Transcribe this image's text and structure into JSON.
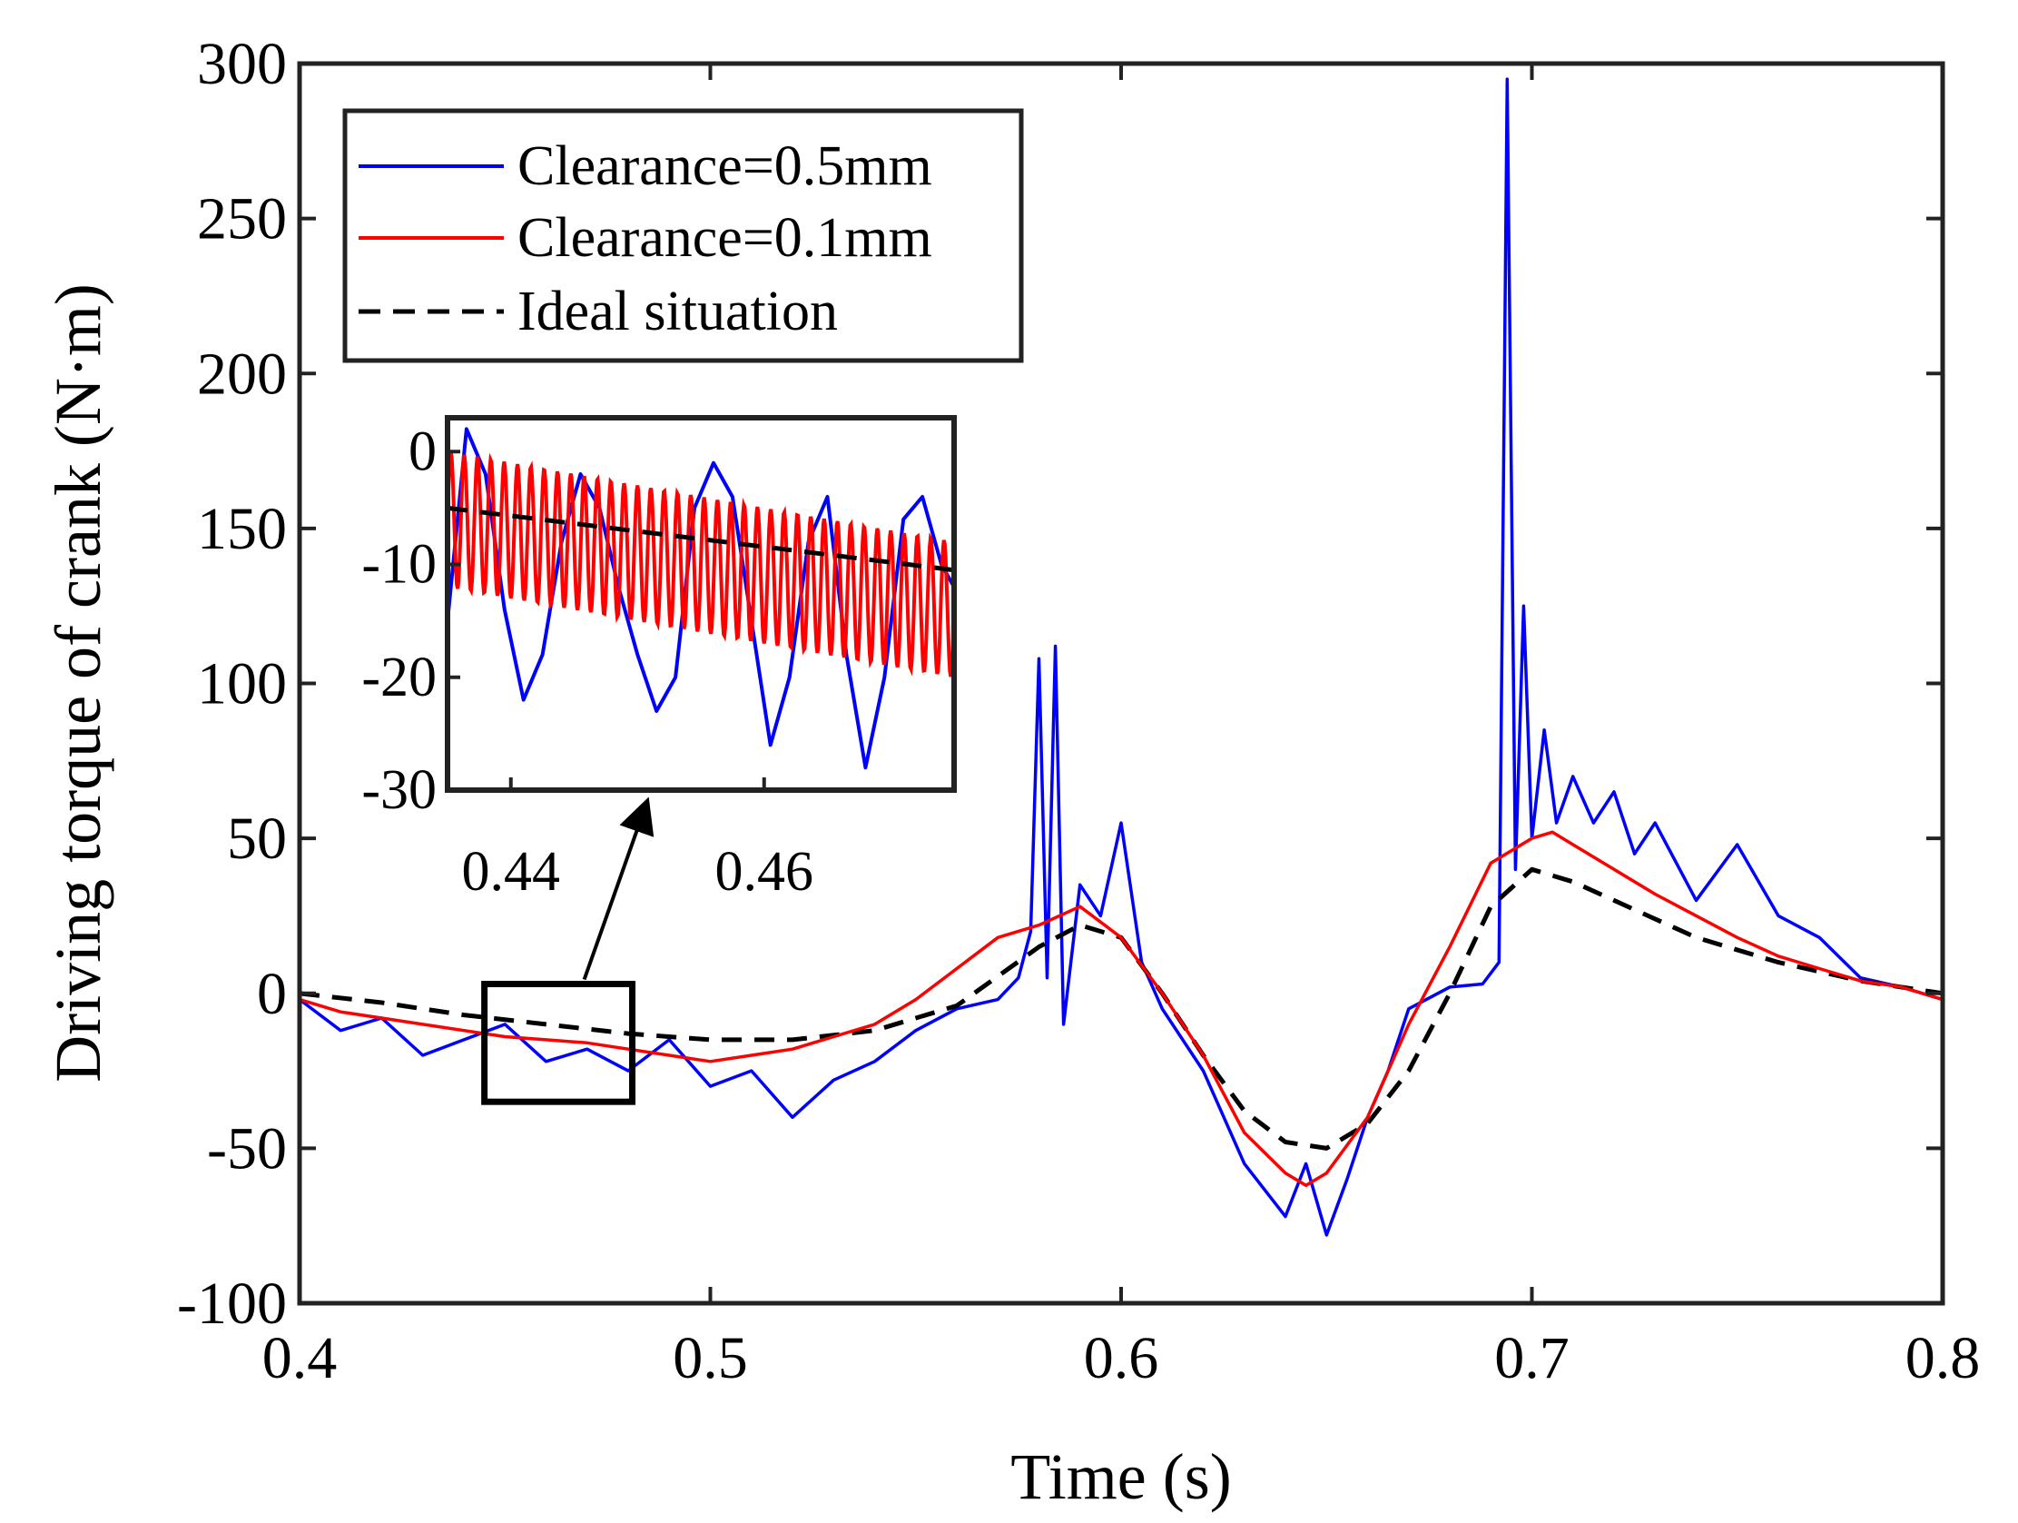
{
  "chart_data": {
    "type": "line",
    "title": "",
    "xlabel": "Time (s)",
    "ylabel": "Driving torque of crank (N·m)",
    "xlim": [
      0.4,
      0.8
    ],
    "ylim": [
      -100,
      300
    ],
    "xticks": [
      "0.4",
      "0.5",
      "0.6",
      "0.7",
      "0.8"
    ],
    "yticks": [
      "-100",
      "-50",
      "0",
      "50",
      "100",
      "150",
      "200",
      "250",
      "300"
    ],
    "grid": false,
    "legend_position": "top-left",
    "series": [
      {
        "name": "Clearance=0.5mm",
        "color": "#0000ff",
        "style": "solid",
        "x": [
          0.4,
          0.41,
          0.42,
          0.43,
          0.44,
          0.45,
          0.46,
          0.47,
          0.48,
          0.49,
          0.5,
          0.51,
          0.52,
          0.53,
          0.54,
          0.55,
          0.56,
          0.57,
          0.575,
          0.578,
          0.58,
          0.582,
          0.584,
          0.586,
          0.59,
          0.595,
          0.6,
          0.605,
          0.61,
          0.62,
          0.63,
          0.64,
          0.645,
          0.65,
          0.655,
          0.66,
          0.665,
          0.67,
          0.68,
          0.688,
          0.692,
          0.694,
          0.696,
          0.698,
          0.7,
          0.703,
          0.706,
          0.71,
          0.715,
          0.72,
          0.725,
          0.73,
          0.74,
          0.75,
          0.76,
          0.77,
          0.78,
          0.79,
          0.8
        ],
        "y": [
          -2,
          -12,
          -8,
          -20,
          -15,
          -10,
          -22,
          -18,
          -25,
          -15,
          -30,
          -25,
          -40,
          -28,
          -22,
          -12,
          -5,
          -2,
          5,
          20,
          108,
          5,
          112,
          -10,
          35,
          25,
          55,
          10,
          -5,
          -25,
          -55,
          -72,
          -55,
          -78,
          -60,
          -40,
          -25,
          -5,
          2,
          3,
          10,
          295,
          40,
          125,
          50,
          85,
          55,
          70,
          55,
          65,
          45,
          55,
          30,
          48,
          25,
          18,
          5,
          2,
          -2
        ]
      },
      {
        "name": "Clearance=0.1mm",
        "color": "#ff0000",
        "style": "solid",
        "x": [
          0.4,
          0.41,
          0.42,
          0.43,
          0.44,
          0.45,
          0.46,
          0.47,
          0.48,
          0.49,
          0.5,
          0.51,
          0.52,
          0.53,
          0.54,
          0.55,
          0.56,
          0.57,
          0.58,
          0.59,
          0.6,
          0.61,
          0.62,
          0.63,
          0.64,
          0.645,
          0.65,
          0.66,
          0.67,
          0.68,
          0.69,
          0.7,
          0.705,
          0.71,
          0.72,
          0.73,
          0.74,
          0.75,
          0.76,
          0.77,
          0.78,
          0.79,
          0.8
        ],
        "y": [
          -2,
          -6,
          -8,
          -10,
          -12,
          -14,
          -15,
          -16,
          -18,
          -20,
          -22,
          -20,
          -18,
          -14,
          -10,
          -2,
          8,
          18,
          22,
          28,
          18,
          0,
          -20,
          -45,
          -58,
          -62,
          -58,
          -40,
          -10,
          15,
          42,
          50,
          52,
          48,
          40,
          32,
          25,
          18,
          12,
          8,
          4,
          2,
          -2
        ]
      },
      {
        "name": "Ideal situation",
        "color": "#000000",
        "style": "dashed",
        "x": [
          0.4,
          0.42,
          0.44,
          0.46,
          0.48,
          0.5,
          0.52,
          0.54,
          0.56,
          0.58,
          0.59,
          0.6,
          0.61,
          0.62,
          0.63,
          0.64,
          0.65,
          0.66,
          0.67,
          0.68,
          0.69,
          0.7,
          0.71,
          0.72,
          0.73,
          0.74,
          0.76,
          0.78,
          0.8
        ],
        "y": [
          0,
          -3,
          -7,
          -10,
          -13,
          -15,
          -15,
          -12,
          -4,
          15,
          22,
          18,
          0,
          -20,
          -38,
          -48,
          -50,
          -42,
          -25,
          0,
          28,
          40,
          36,
          30,
          24,
          18,
          10,
          4,
          0
        ]
      }
    ],
    "inset": {
      "xlim": [
        0.435,
        0.475
      ],
      "ylim": [
        -30,
        3
      ],
      "xticks": [
        "0.44",
        "0.46"
      ],
      "yticks": [
        "-30",
        "-20",
        "-10",
        "0"
      ],
      "series": [
        {
          "name": "Clearance=0.5mm",
          "x": [
            0.435,
            0.4365,
            0.438,
            0.4395,
            0.441,
            0.4425,
            0.444,
            0.4455,
            0.447,
            0.4485,
            0.45,
            0.4515,
            0.453,
            0.4545,
            0.456,
            0.4575,
            0.459,
            0.4605,
            0.462,
            0.4635,
            0.465,
            0.4665,
            0.468,
            0.4695,
            0.471,
            0.4725,
            0.474,
            0.475
          ],
          "y": [
            -15,
            2,
            -2,
            -14,
            -22,
            -18,
            -8,
            -2,
            -5,
            -12,
            -18,
            -23,
            -20,
            -5,
            -1,
            -4,
            -15,
            -26,
            -20,
            -8,
            -4,
            -18,
            -28,
            -20,
            -6,
            -4,
            -10,
            -12
          ]
        },
        {
          "name": "Clearance=0.1mm",
          "center": [
            -6,
            -7,
            -8,
            -9,
            -10,
            -11,
            -12,
            -13,
            -14
          ],
          "amplitude": 6,
          "cycles": 38
        },
        {
          "name": "Ideal situation",
          "x": [
            0.435,
            0.475
          ],
          "y": [
            -5,
            -10.5
          ]
        }
      ]
    }
  }
}
